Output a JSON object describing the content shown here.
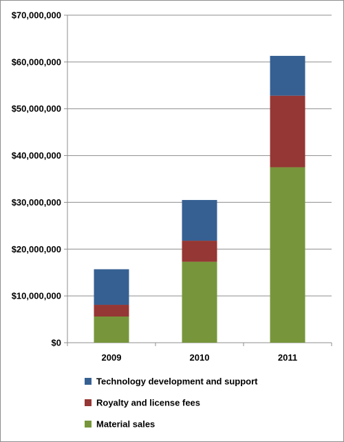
{
  "chart_data": {
    "type": "bar",
    "stacked": true,
    "categories": [
      "2009",
      "2010",
      "2011"
    ],
    "series": [
      {
        "name": "Material sales",
        "color": "#77963b",
        "values": [
          5600000,
          17300000,
          37500000
        ]
      },
      {
        "name": "Royalty and license fees",
        "color": "#953734",
        "values": [
          2500000,
          4500000,
          15300000
        ]
      },
      {
        "name": "Technology development and support",
        "color": "#366092",
        "values": [
          7600000,
          8700000,
          8500000
        ]
      }
    ],
    "y_ticks": [
      "$0",
      "$10,000,000",
      "$20,000,000",
      "$30,000,000",
      "$40,000,000",
      "$50,000,000",
      "$60,000,000",
      "$70,000,000"
    ],
    "ylim": [
      0,
      70000000
    ],
    "grid": "horizontal",
    "legend": {
      "placement": "bottom",
      "order": [
        "Technology development and support",
        "Royalty and license fees",
        "Material sales"
      ]
    },
    "title": "",
    "xlabel": "",
    "ylabel": ""
  }
}
